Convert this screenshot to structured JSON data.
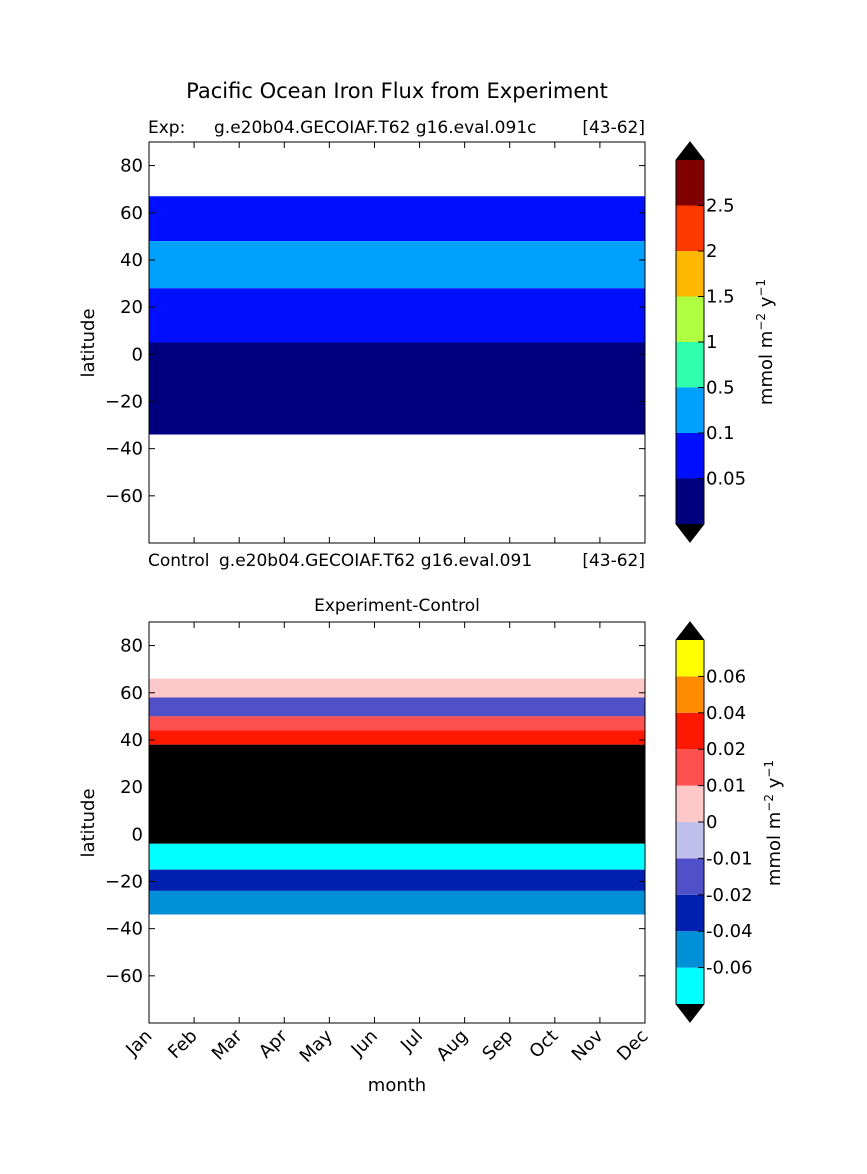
{
  "figure": {
    "title": "Pacific Ocean Iron Flux from Experiment"
  },
  "chart_data": [
    {
      "type": "heatmap",
      "panel": "top",
      "title_left": "Exp:",
      "title_center": "g.e20b04.GECOIAF.T62 g16.eval.091c",
      "title_right": "[43-62]",
      "xlabel": "",
      "ylabel": "latitude",
      "y_ticks": [
        "80",
        "60",
        "40",
        "20",
        "0",
        "−20",
        "−40",
        "−60"
      ],
      "y_tick_values": [
        80,
        60,
        40,
        20,
        0,
        -20,
        -40,
        -60
      ],
      "ylim": [
        -80,
        90
      ],
      "xlim": [
        1,
        12
      ],
      "data_lat_range": [
        -34,
        67
      ],
      "colorbar": {
        "label_main": "mmol m",
        "label_sup1": "−2",
        "label_mid": " y",
        "label_sup2": "−1",
        "levels": [
          "0.05",
          "0.1",
          "0.5",
          "1",
          "1.5",
          "2",
          "2.5"
        ],
        "colors": [
          "#00007f",
          "#0010ff",
          "#00a0ff",
          "#30ffb0",
          "#b0ff40",
          "#ffb800",
          "#ff3800",
          "#800000"
        ],
        "extend_color": "#000000"
      },
      "bands": [
        {
          "lat_top": 67,
          "lat_bottom": 48,
          "level": 1
        },
        {
          "lat_top": 48,
          "lat_bottom": 28,
          "level": 2
        },
        {
          "lat_top": 28,
          "lat_bottom": 5,
          "level": 1
        },
        {
          "lat_top": 5,
          "lat_bottom": -34,
          "level": 0
        }
      ]
    },
    {
      "type": "heatmap",
      "panel": "bottom",
      "title_left": "Control",
      "title_center": "g.e20b04.GECOIAF.T62 g16.eval.091",
      "title_right": "[43-62]",
      "subtitle": "Experiment-Control",
      "xlabel": "month",
      "ylabel": "latitude",
      "x_ticks": [
        "Jan",
        "Feb",
        "Mar",
        "Apr",
        "May",
        "Jun",
        "Jul",
        "Aug",
        "Sep",
        "Oct",
        "Nov",
        "Dec"
      ],
      "y_ticks": [
        "80",
        "60",
        "40",
        "20",
        "0",
        "−20",
        "−40",
        "−60"
      ],
      "y_tick_values": [
        80,
        60,
        40,
        20,
        0,
        -20,
        -40,
        -60
      ],
      "ylim": [
        -80,
        90
      ],
      "xlim": [
        1,
        12
      ],
      "data_lat_range": [
        -34,
        67
      ],
      "colorbar": {
        "label_main": "mmol m",
        "label_sup1": "−2",
        "label_mid": " y",
        "label_sup2": "−1",
        "levels": [
          "-0.06",
          "-0.04",
          "-0.02",
          "-0.01",
          "0",
          "0.01",
          "0.02",
          "0.04",
          "0.06"
        ],
        "colors": [
          "#00ffff",
          "#0090d8",
          "#0020b0",
          "#5050c8",
          "#c0c0ec",
          "#ffc8c8",
          "#ff5050",
          "#ff1800",
          "#ff8c00",
          "#ffff00"
        ],
        "extend_color": "#000000"
      },
      "bands": [
        {
          "lat_top": 66,
          "lat_bottom": 58,
          "level": 5
        },
        {
          "lat_top": 58,
          "lat_bottom": 50,
          "level": 3
        },
        {
          "lat_top": 50,
          "lat_bottom": 44,
          "level": 6
        },
        {
          "lat_top": 44,
          "lat_bottom": 38,
          "level": 7
        },
        {
          "lat_top": 38,
          "lat_bottom": -4,
          "level": -1
        },
        {
          "lat_top": -4,
          "lat_bottom": -15,
          "level": 0
        },
        {
          "lat_top": -15,
          "lat_bottom": -24,
          "level": 2
        },
        {
          "lat_top": -24,
          "lat_bottom": -34,
          "level": 1
        }
      ]
    }
  ]
}
